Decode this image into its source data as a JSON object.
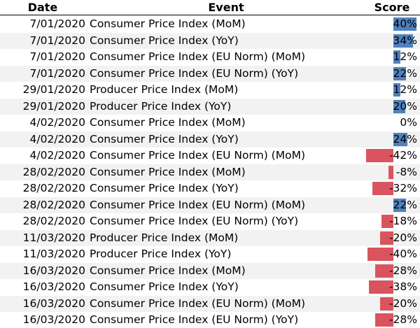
{
  "headers": {
    "date": "Date",
    "event": "Event",
    "score": "Score"
  },
  "colors": {
    "positive_bar": "#4f81bd",
    "negative_bar": "#d9545e",
    "alt_row": "#f2f2f2"
  },
  "score_bar_max_percent": 42,
  "rows": [
    {
      "date": "7/01/2020",
      "event": "Consumer Price Index (MoM)",
      "score": "40%",
      "value": 40
    },
    {
      "date": "7/01/2020",
      "event": "Consumer Price Index (YoY)",
      "score": "34%",
      "value": 34
    },
    {
      "date": "7/01/2020",
      "event": "Consumer Price Index (EU Norm) (MoM)",
      "score": "12%",
      "value": 12
    },
    {
      "date": "7/01/2020",
      "event": "Consumer Price Index (EU Norm) (YoY)",
      "score": "22%",
      "value": 22
    },
    {
      "date": "29/01/2020",
      "event": "Producer Price Index (MoM)",
      "score": "12%",
      "value": 12
    },
    {
      "date": "29/01/2020",
      "event": "Producer Price Index (YoY)",
      "score": "20%",
      "value": 20
    },
    {
      "date": "4/02/2020",
      "event": "Consumer Price Index (MoM)",
      "score": "0%",
      "value": 0
    },
    {
      "date": "4/02/2020",
      "event": "Consumer Price Index (YoY)",
      "score": "24%",
      "value": 24
    },
    {
      "date": "4/02/2020",
      "event": "Consumer Price Index (EU Norm) (MoM)",
      "score": "-42%",
      "value": -42
    },
    {
      "date": "28/02/2020",
      "event": "Consumer Price Index (MoM)",
      "score": "-8%",
      "value": -8
    },
    {
      "date": "28/02/2020",
      "event": "Consumer Price Index (YoY)",
      "score": "-32%",
      "value": -32
    },
    {
      "date": "28/02/2020",
      "event": "Consumer Price Index (EU Norm) (MoM)",
      "score": "22%",
      "value": 22
    },
    {
      "date": "28/02/2020",
      "event": "Consumer Price Index (EU Norm) (YoY)",
      "score": "-18%",
      "value": -18
    },
    {
      "date": "11/03/2020",
      "event": "Producer Price Index (MoM)",
      "score": "-20%",
      "value": -20
    },
    {
      "date": "11/03/2020",
      "event": "Producer Price Index (YoY)",
      "score": "-40%",
      "value": -40
    },
    {
      "date": "16/03/2020",
      "event": "Consumer Price Index (MoM)",
      "score": "-28%",
      "value": -28
    },
    {
      "date": "16/03/2020",
      "event": "Consumer Price Index (YoY)",
      "score": "-38%",
      "value": -38
    },
    {
      "date": "16/03/2020",
      "event": "Consumer Price Index (EU Norm) (MoM)",
      "score": "-20%",
      "value": -20
    },
    {
      "date": "16/03/2020",
      "event": "Consumer Price Index (EU Norm) (YoY)",
      "score": "-28%",
      "value": -28
    }
  ]
}
